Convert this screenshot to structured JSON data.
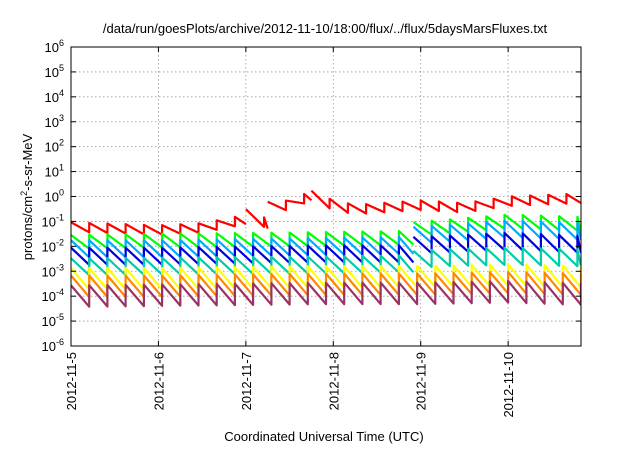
{
  "chart_data": {
    "type": "line",
    "title": "/data/run/goesPlots/archive/2012-11-10/18:00/flux/../flux/5daysMarsFluxes.txt",
    "xlabel": "Coordinated Universal Time (UTC)",
    "ylabel": "protons/cm²-s-sr-MeV",
    "ylabel_parts": {
      "before_sup": "protons/cm",
      "sup": "2",
      "after_sup": "-s-sr-MeV"
    },
    "yscale": "log",
    "xlim": [
      "2012-11-05",
      "2012-11-10T20:00"
    ],
    "ylim": [
      1e-06,
      1000000.0
    ],
    "grid": true,
    "x_ticks": [
      "2012-11-5",
      "2012-11-6",
      "2012-11-7",
      "2012-11-8",
      "2012-11-9",
      "2012-11-10"
    ],
    "y_ticks": [
      {
        "value": 1e-06,
        "base": "10",
        "exp": "-6"
      },
      {
        "value": 1e-05,
        "base": "10",
        "exp": "-5"
      },
      {
        "value": 0.0001,
        "base": "10",
        "exp": "-4"
      },
      {
        "value": 0.001,
        "base": "10",
        "exp": "-3"
      },
      {
        "value": 0.01,
        "base": "10",
        "exp": "-2"
      },
      {
        "value": 0.1,
        "base": "10",
        "exp": "-1"
      },
      {
        "value": 1,
        "base": "10",
        "exp": "0"
      },
      {
        "value": 10,
        "base": "10",
        "exp": "1"
      },
      {
        "value": 100,
        "base": "10",
        "exp": "2"
      },
      {
        "value": 1000,
        "base": "10",
        "exp": "3"
      },
      {
        "value": 10000,
        "base": "10",
        "exp": "4"
      },
      {
        "value": 100000,
        "base": "10",
        "exp": "5"
      },
      {
        "value": 1000000,
        "base": "10",
        "exp": "6"
      }
    ],
    "series": [
      {
        "color": "#ff0000",
        "style": "sawtooth-segments",
        "segments": [
          {
            "x": [
              "2012-11-05T00:00",
              "2012-11-06T00:00",
              "2012-11-06T12:00",
              "2012-11-07T00:00"
            ],
            "y": [
              0.06,
              0.045,
              0.055,
              0.12
            ]
          },
          {
            "x": [
              "2012-11-07T00:00",
              "2012-11-07T06:00"
            ],
            "y": [
              0.2,
              0.08
            ]
          },
          {
            "x": [
              "2012-11-07T06:00",
              "2012-11-07T12:00",
              "2012-11-07T18:00"
            ],
            "y": [
              0.4,
              0.45,
              1.1
            ]
          },
          {
            "x": [
              "2012-11-07T18:00",
              "2012-11-08T00:00",
              "2012-11-08T06:00",
              "2012-11-09T00:00",
              "2012-11-09T12:00",
              "2012-11-10T00:00",
              "2012-11-10T20:00"
            ],
            "y": [
              1.1,
              0.45,
              0.3,
              0.45,
              0.35,
              0.65,
              0.85
            ]
          }
        ]
      },
      {
        "color": "#00ff00",
        "style": "sawtooth-segments",
        "segments": [
          {
            "x": [
              "2012-11-05T00:00",
              "2012-11-06T00:00",
              "2012-11-07T00:00",
              "2012-11-08T00:00",
              "2012-11-08T22:00"
            ],
            "y": [
              0.015,
              0.017,
              0.018,
              0.02,
              0.022
            ]
          },
          {
            "x": [
              "2012-11-08T22:00",
              "2012-11-09T06:00",
              "2012-11-10T00:00",
              "2012-11-10T20:00"
            ],
            "y": [
              0.05,
              0.06,
              0.1,
              0.08
            ]
          }
        ]
      },
      {
        "color": "#00aaff",
        "style": "sawtooth-segments",
        "segments": [
          {
            "x": [
              "2012-11-05T00:00",
              "2012-11-06T00:00",
              "2012-11-07T00:00",
              "2012-11-08T00:00",
              "2012-11-08T22:00"
            ],
            "y": [
              0.008,
              0.008,
              0.009,
              0.01,
              0.011
            ]
          },
          {
            "x": [
              "2012-11-08T22:00",
              "2012-11-09T06:00",
              "2012-11-10T00:00",
              "2012-11-10T20:00"
            ],
            "y": [
              0.028,
              0.032,
              0.05,
              0.04
            ]
          }
        ]
      },
      {
        "color": "#0000dd",
        "style": "sawtooth-segments",
        "segments": [
          {
            "x": [
              "2012-11-05T00:00",
              "2012-11-06T00:00",
              "2012-11-07T00:00",
              "2012-11-08T00:00",
              "2012-11-08T22:00"
            ],
            "y": [
              0.004,
              0.004,
              0.0045,
              0.005,
              0.005
            ]
          },
          {
            "x": [
              "2012-11-08T22:00",
              "2012-11-09T06:00",
              "2012-11-10T00:00",
              "2012-11-10T20:00"
            ],
            "y": [
              0.011,
              0.012,
              0.016,
              0.012
            ]
          }
        ]
      },
      {
        "color": "#00ccaa",
        "style": "sawtooth-segments",
        "segments": [
          {
            "x": [
              "2012-11-05T00:00",
              "2012-11-06T00:00",
              "2012-11-07T00:00",
              "2012-11-08T00:00",
              "2012-11-08T22:00"
            ],
            "y": [
              0.0015,
              0.0016,
              0.0017,
              0.0018,
              0.002
            ]
          },
          {
            "x": [
              "2012-11-08T22:00",
              "2012-11-09T06:00",
              "2012-11-10T00:00",
              "2012-11-10T20:00"
            ],
            "y": [
              0.003,
              0.0035,
              0.004,
              0.0035
            ]
          }
        ]
      },
      {
        "color": "#ffff00",
        "style": "sawtooth-segments",
        "segments": [
          {
            "x": [
              "2012-11-05T00:00",
              "2012-11-06T00:00",
              "2012-11-07T00:00",
              "2012-11-08T00:00",
              "2012-11-09T00:00",
              "2012-11-10T00:00",
              "2012-11-10T20:00"
            ],
            "y": [
              0.0005,
              0.0005,
              0.00055,
              0.0006,
              0.0006,
              0.0007,
              0.0006
            ]
          }
        ]
      },
      {
        "color": "#ff8800",
        "style": "sawtooth-segments",
        "segments": [
          {
            "x": [
              "2012-11-05T00:00",
              "2012-11-06T00:00",
              "2012-11-07T00:00",
              "2012-11-08T00:00",
              "2012-11-09T00:00",
              "2012-11-10T00:00",
              "2012-11-10T20:00"
            ],
            "y": [
              0.00025,
              0.00025,
              0.00028,
              0.0003,
              0.0003,
              0.00035,
              0.0003
            ]
          }
        ]
      },
      {
        "color": "#993366",
        "style": "sawtooth-segments",
        "segments": [
          {
            "x": [
              "2012-11-05T00:00",
              "2012-11-06T00:00",
              "2012-11-07T00:00",
              "2012-11-08T00:00",
              "2012-11-09T00:00",
              "2012-11-10T00:00",
              "2012-11-10T20:00"
            ],
            "y": [
              0.0001,
              0.00011,
              0.00012,
              0.00013,
              0.00013,
              0.00015,
              0.00012
            ]
          }
        ]
      }
    ]
  }
}
